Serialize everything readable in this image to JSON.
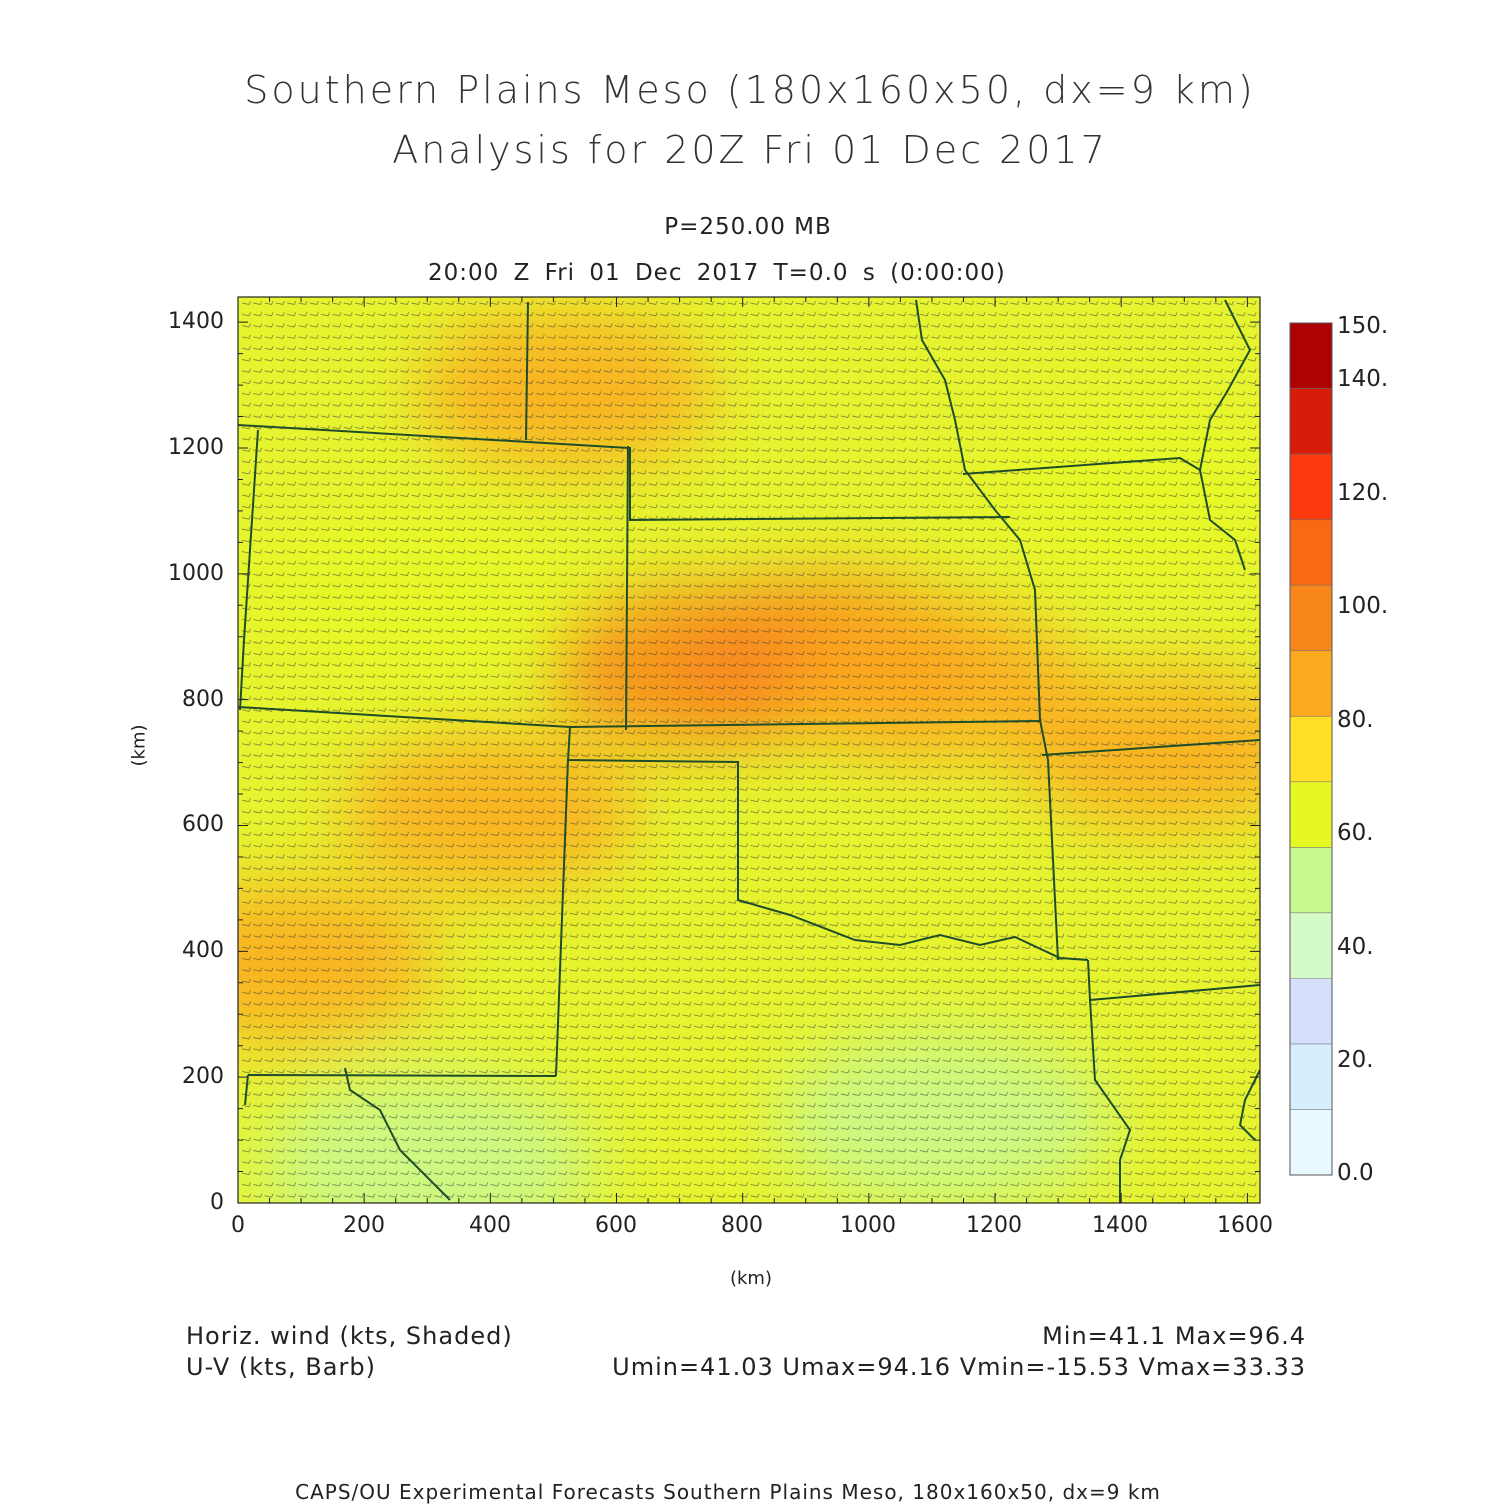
{
  "title": {
    "line1": "Southern Plains Meso (180x160x50, dx=9 km)",
    "line2": "Analysis for 20Z Fri 01 Dec 2017"
  },
  "subtitle": {
    "pressure": "P=250.00 MB",
    "time": "20:00 Z Fri 01 Dec 2017    T=0.0 s (0:00:00)"
  },
  "axes": {
    "xlabel": "(km)",
    "ylabel": "(km)",
    "xlim": [
      0,
      1620
    ],
    "ylim": [
      0,
      1440
    ],
    "xticks": [
      "0",
      "200",
      "400",
      "600",
      "800",
      "1000",
      "1200",
      "1400",
      "1600"
    ],
    "yticks": [
      "0",
      "200",
      "400",
      "600",
      "800",
      "1000",
      "1200",
      "1400"
    ]
  },
  "colorbar": {
    "labels": [
      "0.0",
      "20.",
      "40.",
      "60.",
      "80.",
      "100.",
      "120.",
      "140.",
      "150."
    ],
    "colors": [
      "#eaf8ff",
      "#d6eefe",
      "#d6e0fa",
      "#d4fac8",
      "#c8f890",
      "#e6f824",
      "#ffe024",
      "#fcaa20",
      "#f8861a",
      "#f96812",
      "#fa3a0c",
      "#d71c0a",
      "#ad0202"
    ]
  },
  "legend": {
    "shaded": "Horiz. wind (kts, Shaded)",
    "barb": "U-V (kts, Barb)"
  },
  "stats": {
    "minmax": "Min=41.1 Max=96.4",
    "uv": "Umin=41.03 Umax=94.16 Vmin=-15.53 Vmax=33.33"
  },
  "footer": "CAPS/OU Experimental Forecasts  Southern Plains Meso, 180x160x50, dx=9 km",
  "chart_data": {
    "type": "heatmap",
    "field": "Horiz. wind (kts, Shaded)",
    "min": 41.1,
    "max": 96.4,
    "wind_maxima": [
      {
        "x": 730,
        "y": 850,
        "value": 94
      },
      {
        "x": 940,
        "y": 870,
        "value": 96
      },
      {
        "x": 1100,
        "y": 830,
        "value": 92
      },
      {
        "x": 520,
        "y": 1290,
        "value": 90
      },
      {
        "x": 400,
        "y": 620,
        "value": 90
      },
      {
        "x": 80,
        "y": 380,
        "value": 88
      },
      {
        "x": 1470,
        "y": 720,
        "value": 86
      }
    ],
    "wind_minima": [
      {
        "x": 270,
        "y": 970,
        "value": 60
      },
      {
        "x": 300,
        "y": 60,
        "value": 52
      },
      {
        "x": 1120,
        "y": 130,
        "value": 56
      },
      {
        "x": 1450,
        "y": 1130,
        "value": 58
      }
    ]
  }
}
